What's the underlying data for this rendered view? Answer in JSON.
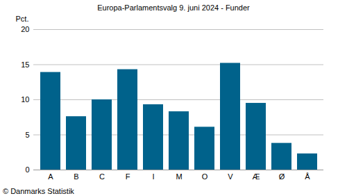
{
  "chart_data": {
    "type": "bar",
    "title": "Europa-Parlamentsvalg 9. juni 2024 - Funder",
    "ylabel": "Pct.",
    "categories": [
      "A",
      "B",
      "C",
      "F",
      "I",
      "M",
      "O",
      "V",
      "Æ",
      "Ø",
      "Å"
    ],
    "values": [
      13.9,
      7.6,
      10.0,
      14.3,
      9.3,
      8.3,
      6.1,
      15.2,
      9.5,
      3.8,
      2.3
    ],
    "color": "#00628b",
    "ylim": [
      0,
      20
    ],
    "yticks": [
      0,
      5,
      10,
      15,
      20
    ],
    "grid": true,
    "caption": "© Danmarks Statistik"
  }
}
